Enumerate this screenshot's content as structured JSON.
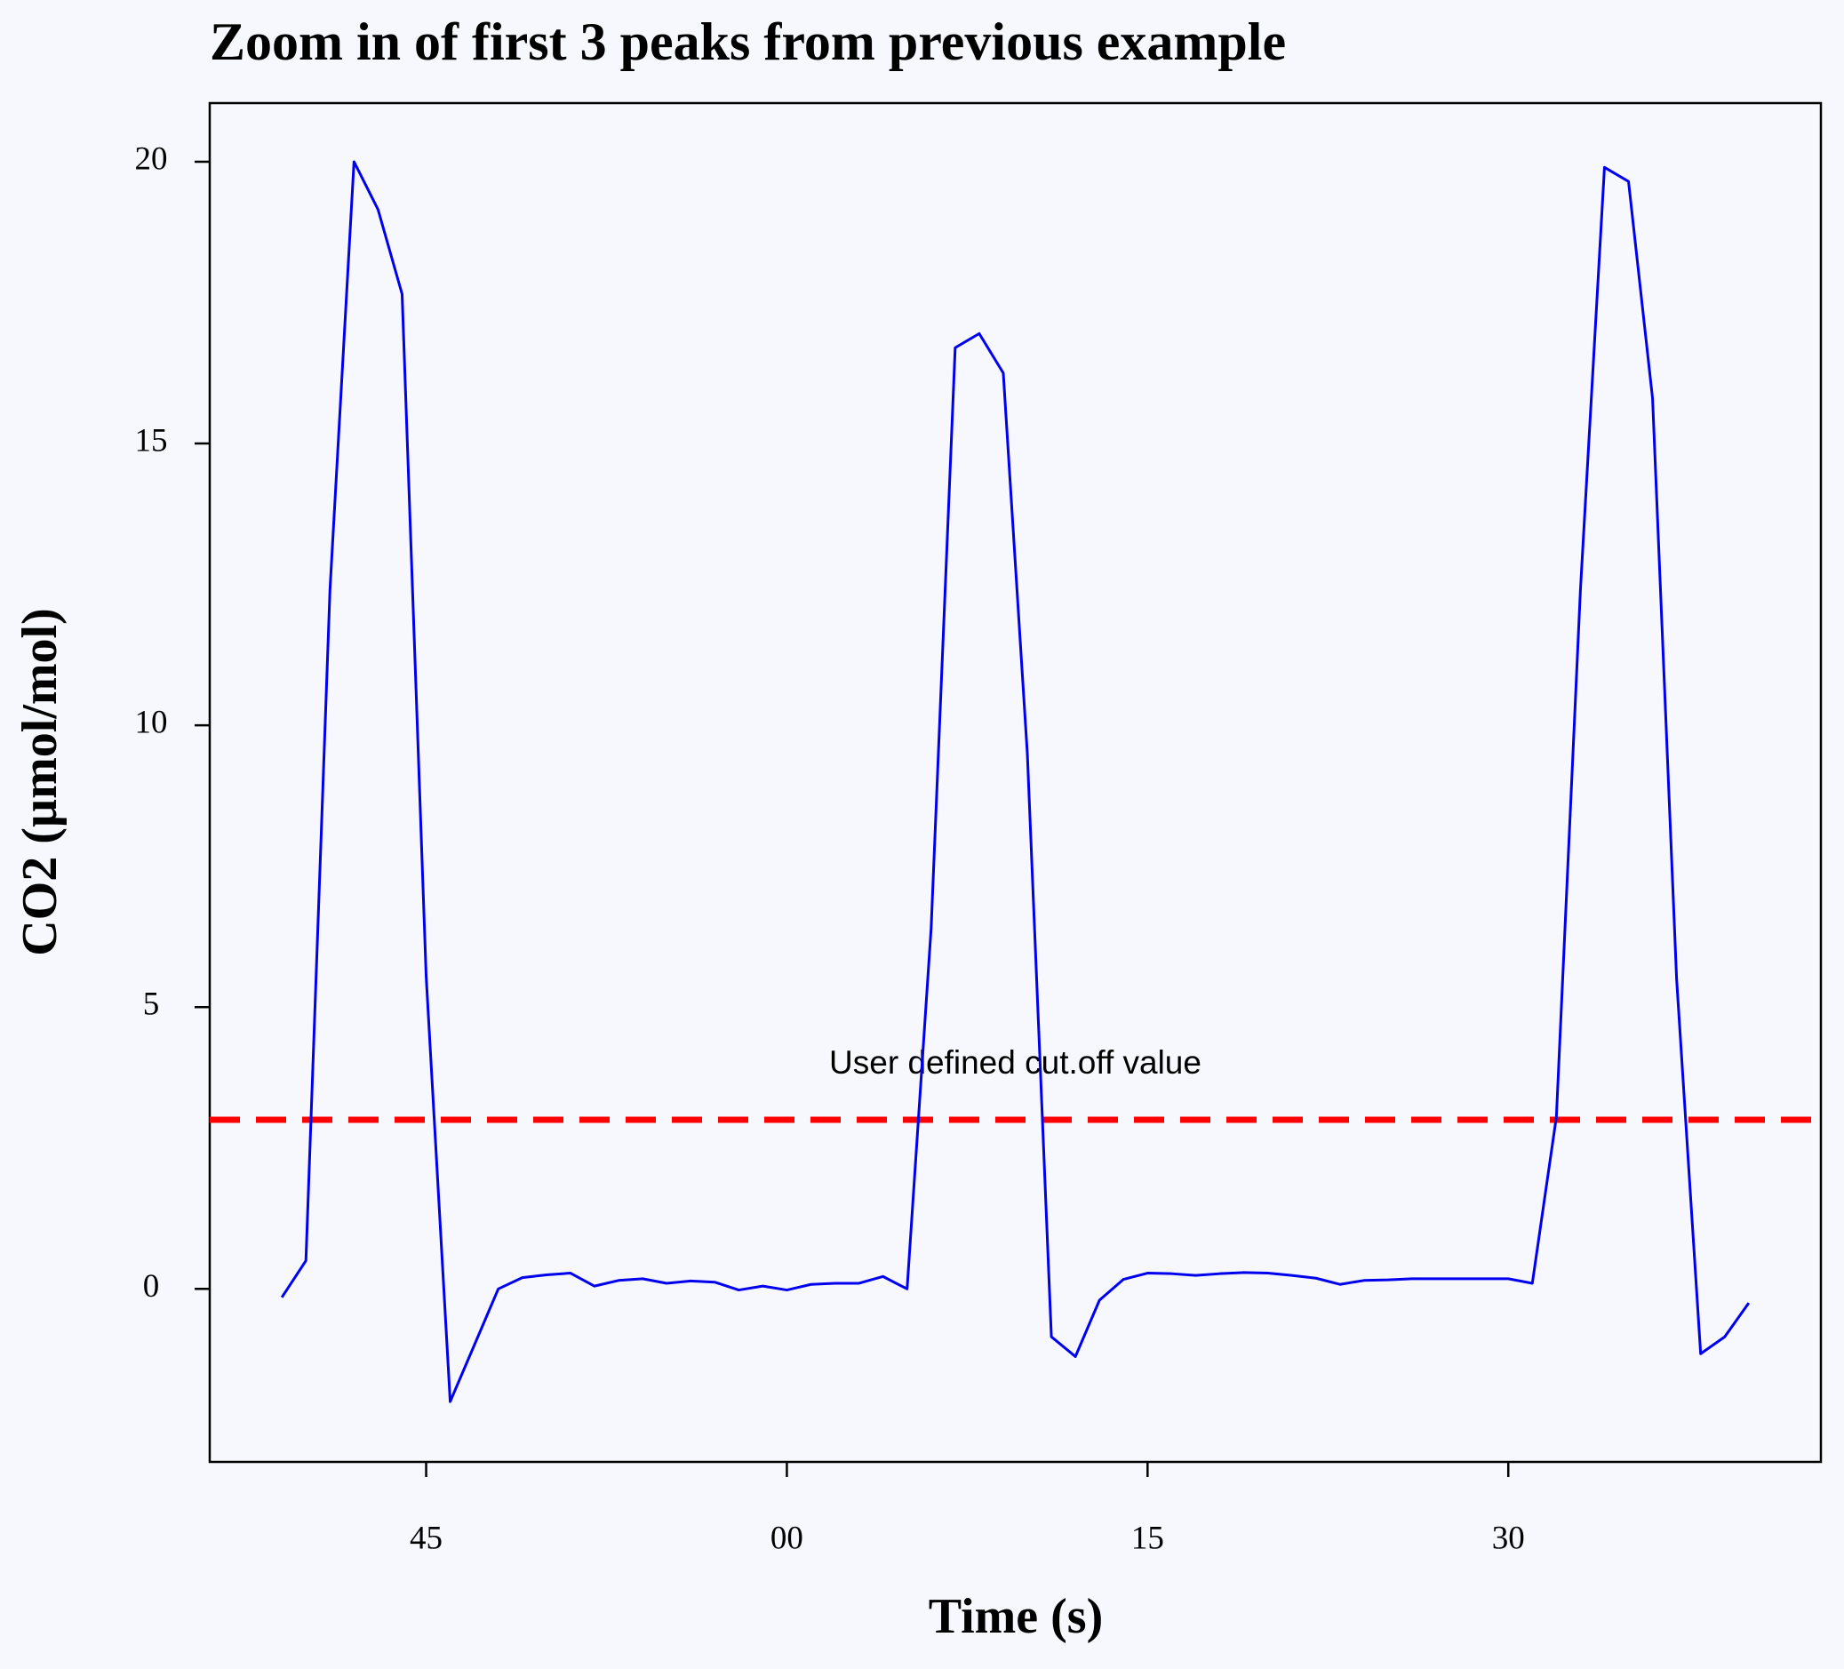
{
  "chart_data": {
    "type": "line",
    "title": "Zoom in of first 3 peaks from previous example",
    "xlabel": "Time (s)",
    "ylabel": "CO2 (µmol/mol)",
    "x": [
      39,
      40,
      41,
      42,
      43,
      44,
      45,
      46,
      47,
      48,
      49,
      50,
      51,
      52,
      53,
      54,
      55,
      56,
      57,
      58,
      59,
      60,
      61,
      62,
      63,
      64,
      65,
      66,
      67,
      68,
      69,
      70,
      71,
      72,
      73,
      74,
      75,
      76,
      77,
      78,
      79,
      80,
      81,
      82,
      83,
      84,
      85,
      86,
      87,
      88,
      89,
      90,
      91,
      92,
      93,
      94,
      95,
      96,
      97,
      98,
      99,
      100
    ],
    "series": [
      {
        "color": "#0000ee",
        "values": [
          -0.15,
          0.5,
          12.4,
          20.0,
          19.15,
          17.65,
          5.55,
          -2.0,
          -1.0,
          0.0,
          0.2,
          0.25,
          0.28,
          0.05,
          0.15,
          0.18,
          0.1,
          0.14,
          0.12,
          -0.02,
          0.05,
          -0.02,
          0.08,
          0.1,
          0.1,
          0.22,
          0.0,
          6.4,
          16.7,
          16.95,
          16.25,
          9.5,
          -0.85,
          -1.2,
          -0.2,
          0.17,
          0.28,
          0.27,
          0.24,
          0.27,
          0.29,
          0.28,
          0.24,
          0.19,
          0.08,
          0.15,
          0.16,
          0.18,
          0.18,
          0.18,
          0.18,
          0.18,
          0.1,
          3.05,
          12.4,
          19.9,
          19.65,
          15.8,
          5.5,
          -1.15,
          -0.85,
          -0.25
        ]
      }
    ],
    "hline": {
      "value": 3,
      "color": "#ff0000",
      "label": "User defined cut.off value"
    },
    "xlim": [
      36,
      103
    ],
    "ylim": [
      -3.07,
      21.04
    ],
    "xticks": [
      45,
      {
        "value": 60,
        "label": "00"
      },
      {
        "value": 75,
        "label": "15"
      },
      {
        "value": 90,
        "label": "30"
      }
    ],
    "yticks": [
      0,
      5,
      10,
      15,
      20
    ]
  }
}
